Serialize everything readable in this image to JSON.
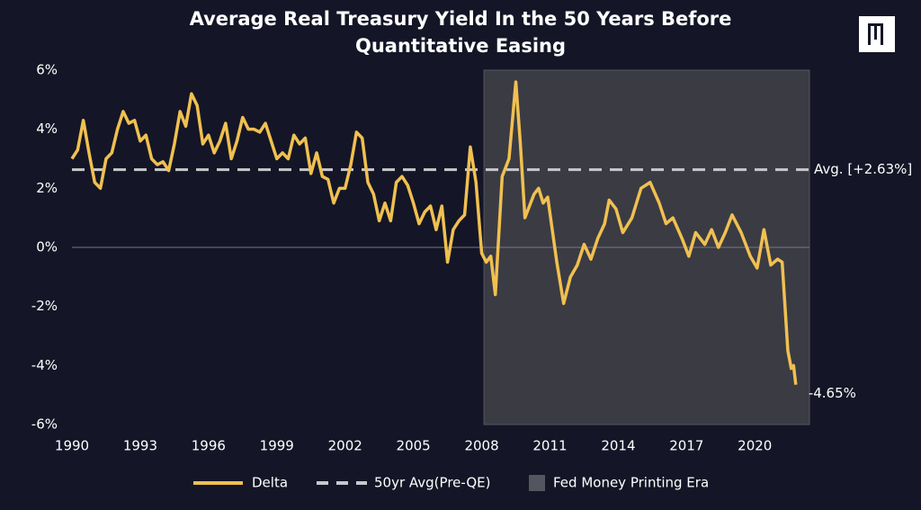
{
  "chart_data": {
    "type": "line",
    "title": "Average Real Treasury Yield In the 50 Years Before",
    "subtitle": "Quantitative Easing",
    "x": [
      1990,
      1990.25,
      1990.5,
      1990.75,
      1991,
      1991.25,
      1991.5,
      1991.75,
      1992,
      1992.25,
      1992.5,
      1992.75,
      1993,
      1993.25,
      1993.5,
      1993.75,
      1994,
      1994.25,
      1994.5,
      1994.75,
      1995,
      1995.25,
      1995.5,
      1995.75,
      1996,
      1996.25,
      1996.5,
      1996.75,
      1997,
      1997.25,
      1997.5,
      1997.75,
      1998,
      1998.25,
      1998.5,
      1998.75,
      1999,
      1999.25,
      1999.5,
      1999.75,
      2000,
      2000.25,
      2000.5,
      2000.75,
      2001,
      2001.25,
      2001.5,
      2001.75,
      2002,
      2002.25,
      2002.5,
      2002.75,
      2003,
      2003.25,
      2003.5,
      2003.75,
      2004,
      2004.25,
      2004.5,
      2004.75,
      2005,
      2005.25,
      2005.5,
      2005.75,
      2006,
      2006.25,
      2006.5,
      2006.75,
      2007,
      2007.25,
      2007.5,
      2007.75,
      2008,
      2008.2,
      2008.4,
      2008.6,
      2008.9,
      2009.2,
      2009.5,
      2009.7,
      2009.9,
      2010.3,
      2010.5,
      2010.7,
      2010.9,
      2011.3,
      2011.6,
      2011.9,
      2012.2,
      2012.5,
      2012.8,
      2013.1,
      2013.4,
      2013.6,
      2013.9,
      2014.2,
      2014.6,
      2015,
      2015.4,
      2015.8,
      2016.1,
      2016.4,
      2016.8,
      2017.1,
      2017.4,
      2017.8,
      2018.1,
      2018.4,
      2018.7,
      2019,
      2019.4,
      2019.8,
      2020.1,
      2020.4,
      2020.7,
      2021,
      2021.2,
      2021.45,
      2021.6,
      2021.7,
      2021.8
    ],
    "series": [
      {
        "name": "Delta",
        "color": "#f0c050",
        "values": [
          3.0,
          3.3,
          4.3,
          3.2,
          2.2,
          2.0,
          3.0,
          3.2,
          4.0,
          4.6,
          4.2,
          4.3,
          3.6,
          3.8,
          3.0,
          2.8,
          2.9,
          2.6,
          3.5,
          4.6,
          4.1,
          5.2,
          4.8,
          3.5,
          3.8,
          3.2,
          3.6,
          4.2,
          3.0,
          3.6,
          4.4,
          4.0,
          4.0,
          3.9,
          4.2,
          3.6,
          3.0,
          3.2,
          3.0,
          3.8,
          3.5,
          3.7,
          2.5,
          3.2,
          2.4,
          2.3,
          1.5,
          2.0,
          2.0,
          2.8,
          3.9,
          3.7,
          2.2,
          1.8,
          0.9,
          1.5,
          0.9,
          2.2,
          2.4,
          2.1,
          1.5,
          0.8,
          1.2,
          1.4,
          0.6,
          1.4,
          -0.5,
          0.6,
          0.9,
          1.1,
          3.4,
          2.2,
          -0.2,
          -0.5,
          -0.3,
          -1.6,
          2.4,
          3.0,
          5.6,
          3.5,
          1.0,
          1.8,
          2.0,
          1.5,
          1.7,
          -0.5,
          -1.9,
          -1.0,
          -0.6,
          0.1,
          -0.4,
          0.3,
          0.8,
          1.6,
          1.3,
          0.5,
          1.0,
          2.0,
          2.2,
          1.5,
          0.8,
          1.0,
          0.3,
          -0.3,
          0.5,
          0.1,
          0.6,
          0.0,
          0.5,
          1.1,
          0.5,
          -0.3,
          -0.7,
          0.6,
          -0.6,
          -0.4,
          -0.5,
          -3.5,
          -4.1,
          -4.0,
          -4.65
        ],
        "value_labels": [
          null,
          null,
          null,
          null,
          null,
          null,
          null,
          null,
          null,
          null,
          null,
          null,
          null,
          null,
          null,
          null,
          null,
          null,
          null,
          null,
          null,
          null,
          null,
          null,
          null,
          null,
          null,
          null,
          null,
          null,
          null,
          null,
          null,
          null,
          null,
          null,
          null,
          null,
          null,
          null,
          null,
          null,
          null,
          null,
          null,
          null,
          null,
          null,
          null,
          null,
          null,
          null,
          null,
          null,
          null,
          null,
          null,
          null,
          null,
          null,
          null,
          null,
          null,
          null,
          null,
          null,
          null,
          null,
          null,
          null,
          null,
          null,
          null,
          null,
          null,
          null,
          null,
          null,
          null,
          null,
          null,
          null,
          null,
          null,
          null,
          null,
          null,
          null,
          null,
          null,
          null,
          null,
          null,
          null,
          null,
          null,
          null,
          null,
          null,
          null,
          null,
          null,
          null,
          null,
          null,
          null,
          null,
          null,
          null,
          null,
          null,
          null,
          null,
          null,
          null,
          null,
          null,
          null,
          null,
          null,
          "-4.65%"
        ]
      }
    ],
    "reference_line": {
      "name": "50yr Avg(Pre-QE)",
      "value": 2.63,
      "label": "Avg. [+2.63%]",
      "color": "#c8c8cc"
    },
    "shaded_region": {
      "name": "Fed Money Printing Era",
      "x": [
        2008.1,
        2022.4
      ],
      "color": "#3b3b44"
    },
    "xlim": [
      1990,
      2022.4
    ],
    "xticks": [
      1990,
      1993,
      1996,
      1999,
      2002,
      2005,
      2008,
      2011,
      2014,
      2017,
      2020
    ],
    "ylim": [
      -6,
      6
    ],
    "yticks": [
      {
        "value": -6,
        "label": "-6%"
      },
      {
        "value": -4,
        "label": "-4%"
      },
      {
        "value": -2,
        "label": "-2%"
      },
      {
        "value": 0,
        "label": "0%"
      },
      {
        "value": 2,
        "label": "2%"
      },
      {
        "value": 4,
        "label": "4%"
      },
      {
        "value": 6,
        "label": "6%"
      }
    ]
  }
}
